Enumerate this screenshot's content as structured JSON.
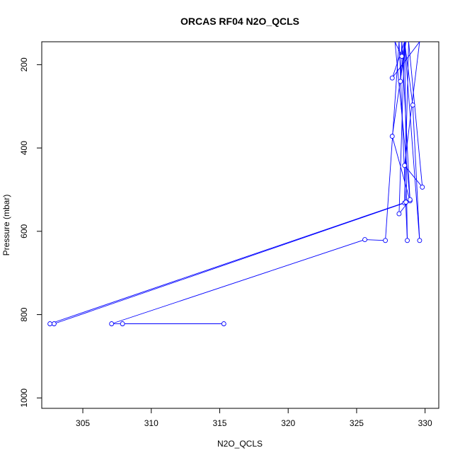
{
  "chart_data": {
    "type": "line",
    "title": "ORCAS RF04 N2O_QCLS",
    "xlabel": "N2O_QCLS",
    "ylabel": "Pressure (mbar)",
    "xlim": [
      302,
      331
    ],
    "ylim": [
      1025,
      145
    ],
    "y_reversed": true,
    "x_ticks": [
      "305",
      "310",
      "315",
      "320",
      "325",
      "330"
    ],
    "y_ticks": [
      "200",
      "400",
      "600",
      "800",
      "1000"
    ],
    "grid": false,
    "line_color": "#0000ff",
    "marker": "open-circle",
    "series": [
      {
        "x": [
          315.3,
          307.9,
          307.1,
          325.6,
          327.1,
          328.1,
          328.7,
          328.5,
          329.6,
          329.1,
          328.5,
          328.2,
          328.3,
          328.9,
          327.6,
          328.6,
          328.3,
          327.8,
          328.9,
          328.1,
          328.5,
          327.6,
          329.6,
          328.5,
          329.8,
          328.8,
          328.5,
          302.9,
          302.6,
          328.6
        ],
        "y": [
          822,
          822,
          822,
          620,
          622,
          145,
          622,
          145,
          622,
          297,
          145,
          240,
          145,
          527,
          372,
          145,
          180,
          145,
          524,
          558,
          145,
          232,
          145,
          442,
          494,
          145,
          532,
          822,
          822,
          530
        ]
      }
    ]
  }
}
